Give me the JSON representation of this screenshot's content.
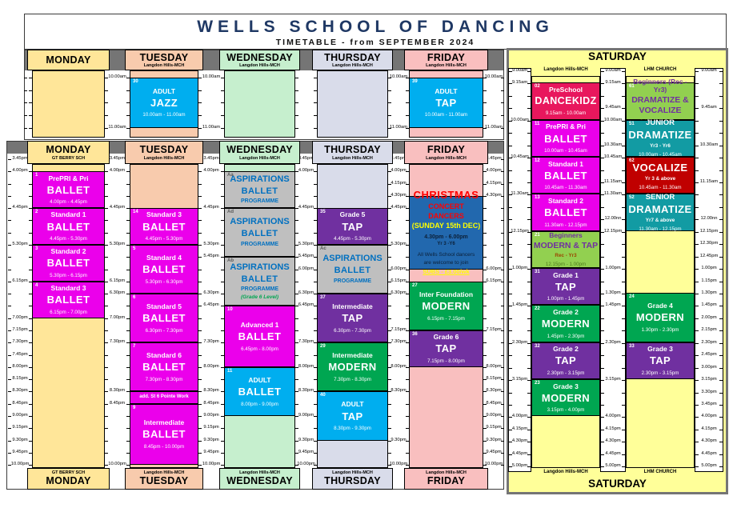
{
  "title": "WELLS SCHOOL OF DANCING",
  "subtitle": "TIMETABLE - from SEPTEMBER 2024",
  "colors": {
    "title_navy": "#1F3864",
    "day_monday": "#FFE699",
    "day_tuesday": "#F8CBAD",
    "day_wednesday": "#C6EFCE",
    "day_thursday": "#D9DCEA",
    "day_friday": "#F9BFBF",
    "day_saturday": "#FFFF99",
    "ballet": "#EB00EB",
    "tap": "#7030A0",
    "modern": "#00A651",
    "adult": "#00AEEF",
    "aspirations_bg": "#BFBFBF",
    "aspirations_text": "#0070C0",
    "aspirations_note_green": "#00A651",
    "lime": "#92D050",
    "lime_text": "#7030A0",
    "lime_time": "#4E7B1D",
    "lime_sub": "#9C4500",
    "teal": "#129BA3",
    "red": "#C00000",
    "dancekidz": "#E8175D",
    "christmas_bg": "#2268AE",
    "grey_band": "#757575"
  },
  "morning": {
    "days": [
      {
        "id": "monday",
        "name": "MONDAY",
        "venue": "",
        "blocks": []
      },
      {
        "id": "tuesday",
        "name": "TUESDAY",
        "venue": "Langdon Hills-MCH",
        "blocks": [
          {
            "num": "30",
            "l1": "ADULT",
            "l2": "JAZZ",
            "time": "10.00am - 11.00am",
            "start": "10.00am",
            "end": "11.00am",
            "color": "adult"
          }
        ]
      },
      {
        "id": "wednesday",
        "name": "WEDNESDAY",
        "venue": "Langdon Hills-MCH",
        "blocks": []
      },
      {
        "id": "thursday",
        "name": "THURSDAY",
        "venue": "Langdon Hills-MCH",
        "blocks": []
      },
      {
        "id": "friday",
        "name": "FRIDAY",
        "venue": "Langdon Hills-MCH",
        "blocks": [
          {
            "num": "39",
            "l1": "ADULT",
            "l2": "TAP",
            "time": "10.00am - 11.00am",
            "start": "10.00am",
            "end": "11.00am",
            "color": "adult"
          }
        ]
      }
    ],
    "rulers": [
      {
        "labels": []
      },
      {
        "labels": [
          "10.00am",
          "11.00am"
        ]
      },
      {
        "labels": [
          "10.00am",
          "11.00am"
        ]
      },
      {
        "labels": []
      },
      {
        "labels": [
          "10.00am",
          "11.00am"
        ]
      },
      {
        "labels": [
          "10.00am",
          "11.00am"
        ]
      }
    ]
  },
  "main": {
    "days": [
      {
        "id": "monday",
        "name": "MONDAY",
        "venue": "GT BERRY SCH",
        "blocks": [
          {
            "num": "1",
            "l1": "PrePRI & Pri",
            "l2": "BALLET",
            "time": "4.00pm - 4.45pm",
            "start": "4.00pm",
            "end": "4.45pm",
            "color": "ballet"
          },
          {
            "num": "2",
            "l1": "Standard 1",
            "l2": "BALLET",
            "time": "4.45pm - 5.30pm",
            "start": "4.45pm",
            "end": "5.30pm",
            "color": "ballet"
          },
          {
            "num": "3",
            "l1": "Standard 2",
            "l2": "BALLET",
            "time": "5.30pm - 6.15pm",
            "start": "5.30pm",
            "end": "6.15pm",
            "color": "ballet"
          },
          {
            "num": "4",
            "l1": "Standard 3",
            "l2": "BALLET",
            "time": "6.15pm - 7.00pm",
            "start": "6.15pm",
            "end": "7.00pm",
            "color": "ballet"
          }
        ]
      },
      {
        "id": "tuesday",
        "name": "TUESDAY",
        "venue": "Langdon Hills-MCH",
        "blocks": [
          {
            "num": "14",
            "l1": "Standard 3",
            "l2": "BALLET",
            "time": "4.45pm - 5.30pm",
            "start": "4.45pm",
            "end": "5.30pm",
            "color": "ballet"
          },
          {
            "num": "5",
            "l1": "Standard 4",
            "l2": "BALLET",
            "time": "5.30pm - 6.30pm",
            "start": "5.30pm",
            "end": "6.30pm",
            "color": "ballet"
          },
          {
            "num": "6",
            "l1": "Standard 5",
            "l2": "BALLET",
            "time": "6.30pm - 7.30pm",
            "start": "6.30pm",
            "end": "7.30pm",
            "color": "ballet"
          },
          {
            "num": "7",
            "l1": "Standard 6",
            "l2": "BALLET",
            "time": "7.30pm - 8.30pm",
            "start": "7.30pm",
            "end": "8.30pm",
            "color": "ballet"
          },
          {
            "type": "strip",
            "text": "add. St 6 Pointe Work",
            "start": "8.30pm",
            "end": "8.45pm",
            "color": "ballet"
          },
          {
            "num": "9",
            "l1": "Intermediate",
            "l2": "BALLET",
            "time": "8.45pm - 10.00pm",
            "start": "8.45pm",
            "end": "10.00pm",
            "color": "ballet"
          }
        ]
      },
      {
        "id": "wednesday",
        "name": "WEDNESDAY",
        "venue": "Langdon Hills-MCH",
        "blocks": [
          {
            "num": "Aa",
            "l1": "ASPIRATIONS",
            "l2": "BALLET",
            "sub": "PROGRAMME",
            "start": "4.00pm",
            "end": "4.45pm",
            "color": "asp"
          },
          {
            "num": "Ad",
            "l1": "ASPIRATIONS",
            "l2": "BALLET",
            "sub": "PROGRAMME",
            "start": "4.45pm",
            "end": "5.45pm",
            "color": "asp"
          },
          {
            "num": "Ab",
            "l1": "ASPIRATIONS",
            "l2": "BALLET",
            "sub": "PROGRAMME",
            "sub2": "(Grade 6 Level)",
            "start": "5.45pm",
            "end": "6.45pm",
            "color": "asp"
          },
          {
            "num": "10",
            "l1": "Advanced 1",
            "l2": "BALLET",
            "time": "6.45pm - 8.00pm",
            "start": "6.45pm",
            "end": "8.00pm",
            "color": "ballet"
          },
          {
            "num": "11",
            "l1": "ADULT",
            "l2": "BALLET",
            "time": "8.00pm - 9.00pm",
            "start": "8.00pm",
            "end": "9.00pm",
            "color": "adult"
          }
        ]
      },
      {
        "id": "thursday",
        "name": "THURSDAY",
        "venue": "Langdon Hills-MCH",
        "blocks": [
          {
            "num": "35",
            "l1": "Grade 5",
            "l2": "TAP",
            "time": "4.45pm - 5.30pm",
            "start": "4.45pm",
            "end": "5.30pm",
            "color": "tap"
          },
          {
            "num": "Ac",
            "l1": "ASPIRATIONS",
            "l2": "BALLET",
            "sub": "PROGRAMME",
            "start": "5.30pm",
            "end": "6.30pm",
            "color": "asp"
          },
          {
            "num": "37",
            "l1": "Intermediate",
            "l2": "TAP",
            "time": "6.30pm - 7.30pm",
            "start": "6.30pm",
            "end": "7.30pm",
            "color": "tap"
          },
          {
            "num": "29",
            "l1": "Intermediate",
            "l2": "MODERN",
            "time": "7.30pm - 8.30pm",
            "start": "7.30pm",
            "end": "8.30pm",
            "color": "modern"
          },
          {
            "num": "40",
            "l1": "ADULT",
            "l2": "TAP",
            "time": "8.30pm - 9.30pm",
            "start": "8.30pm",
            "end": "9.30pm",
            "color": "adult"
          }
        ]
      },
      {
        "id": "friday",
        "name": "FRIDAY",
        "venue": "Langdon Hills-MCH",
        "blocks": [
          {
            "type": "christmas",
            "start": "4.30pm",
            "end": "6.00pm",
            "color": "christmas",
            "lines": [
              {
                "text": "CHRISTMAS",
                "style": "xm-l1"
              },
              {
                "text": "CONCERT DANCERS",
                "style": "xm-l2"
              },
              {
                "text": "(SUNDAY 15th DEC)",
                "style": "xm-l3"
              },
              {
                "text": "4.30pm - 6.00pm",
                "style": "xm-time"
              },
              {
                "text": "Yr 3 -Y6",
                "style": "xm-sub"
              },
              {
                "text": "All Wells School dancers",
                "style": "xm-note first"
              },
              {
                "text": "are welcome to join",
                "style": "xm-note"
              },
              {
                "text": "SUBS - £3.00/wk",
                "style": "xm-subs"
              }
            ]
          },
          {
            "num": "27",
            "l1": "Inter Foundation",
            "l2": "MODERN",
            "time": "6.15pm - 7.15pm",
            "start": "6.15pm",
            "end": "7.15pm",
            "color": "modern"
          },
          {
            "num": "36",
            "l1": "Grade 6",
            "l2": "TAP",
            "time": "7.15pm - 8.00pm",
            "start": "7.15pm",
            "end": "8.00pm",
            "color": "tap"
          }
        ]
      }
    ],
    "rulers": [
      {
        "labels": [
          "3.45pm",
          "4.00pm",
          "4.45pm",
          "5.30pm",
          "6.15pm",
          "7.00pm",
          "7.15pm",
          "7.30pm",
          "7.45pm",
          "8.00pm",
          "8.15pm",
          "8.30pm",
          "8.45pm",
          "9.00pm",
          "9.15pm",
          "9.30pm",
          "9.45pm",
          "10.00pm"
        ]
      },
      {
        "labels": [
          "3.45pm",
          "4.00pm",
          "4.45pm",
          "5.30pm",
          "6.15pm",
          "6.30pm",
          "7.00pm",
          "7.30pm",
          "8.30pm",
          "8.45pm",
          "10.00pm"
        ]
      },
      {
        "labels": [
          "3.45pm",
          "4.00pm",
          "4.45pm",
          "5.30pm",
          "5.45pm",
          "6.30pm",
          "6.45pm",
          "7.30pm",
          "8.00pm",
          "8.30pm",
          "8.45pm",
          "9.00pm",
          "9.15pm",
          "9.30pm",
          "9.45pm",
          "10.00pm"
        ]
      },
      {
        "labels": [
          "3.45pm",
          "4.00pm",
          "4.45pm",
          "5.30pm",
          "5.45pm",
          "6.00pm",
          "6.30pm",
          "6.45pm",
          "7.30pm",
          "8.00pm",
          "8.30pm",
          "9.00pm",
          "9.30pm",
          "9.45pm",
          "10.00pm"
        ]
      },
      {
        "labels": [
          "3.45pm",
          "4.00pm",
          "4.15pm",
          "4.30pm",
          "4.45pm",
          "5.30pm",
          "6.00pm",
          "6.15pm",
          "6.30pm",
          "7.15pm",
          "7.30pm",
          "8.00pm",
          "8.30pm",
          "9.30pm",
          "10.00pm"
        ]
      },
      {
        "labels": [
          "3.45pm",
          "4.00pm",
          "4.15pm",
          "4.30pm",
          "6.00pm",
          "6.15pm",
          "7.15pm",
          "8.00pm",
          "8.15pm",
          "8.30pm",
          "8.45pm",
          "9.00pm",
          "9.15pm",
          "9.30pm",
          "9.45pm",
          "10.00pm"
        ]
      }
    ]
  },
  "saturday": {
    "title": "SATURDAY",
    "columns": [
      {
        "venue": "Langdon Hills-MCH",
        "blocks": [
          {
            "num": "02",
            "l1": "PreSchool",
            "l2": "DANCEKIDZ",
            "time": "9.15am - 10.00am",
            "start": "9.15am",
            "end": "10.00am",
            "color": "dancekidz"
          },
          {
            "num": "11",
            "l1": "PrePRI & Pri",
            "l2": "BALLET",
            "time": "10.00am - 10.45am",
            "start": "10.00am",
            "end": "10.45am",
            "color": "ballet"
          },
          {
            "num": "12",
            "l1": "Standard 1",
            "l2": "BALLET",
            "time": "10.45am - 11.30am",
            "start": "10.45am",
            "end": "11.30am",
            "color": "ballet"
          },
          {
            "num": "13",
            "l1": "Standard 2",
            "l2": "BALLET",
            "time": "11.30am - 12.15pm",
            "start": "11.30am",
            "end": "12.15pm",
            "color": "ballet"
          },
          {
            "num": "21",
            "l1": "Beginners",
            "l2": "MODERN & TAP",
            "sub": "Rec - Yr3",
            "time": "12.15pm - 1.00pm",
            "start": "12.15pm",
            "end": "1.00pm",
            "color": "lime"
          },
          {
            "num": "31",
            "l1": "Grade 1",
            "l2": "TAP",
            "time": "1.00pm - 1.45pm",
            "start": "1.00pm",
            "end": "1.45pm",
            "color": "tap"
          },
          {
            "num": "22",
            "l1": "Grade 2",
            "l2": "MODERN",
            "time": "1.45pm - 2.30pm",
            "start": "1.45pm",
            "end": "2.30pm",
            "color": "modern"
          },
          {
            "num": "32",
            "l1": "Grade 2",
            "l2": "TAP",
            "time": "2.30pm - 3.15pm",
            "start": "2.30pm",
            "end": "3.15pm",
            "color": "tap"
          },
          {
            "num": "23",
            "l1": "Grade 3",
            "l2": "MODERN",
            "time": "3.15pm - 4.00pm",
            "start": "3.15pm",
            "end": "4.00pm",
            "color": "modern"
          }
        ]
      },
      {
        "venue": "LHM CHURCH",
        "blocks": [
          {
            "num": "61",
            "l1": "Beginners (Rec - Yr3)",
            "l2": "DRAMATIZE & VOCALIZE",
            "time": "9.15am - 10.00am",
            "start": "9.15am",
            "end": "10.00am",
            "color": "lime"
          },
          {
            "num": "51",
            "l1": "JUNIOR",
            "l2": "DRAMATIZE",
            "sub": "Yr3 - Yr6",
            "time": "10.00am - 10.45am",
            "start": "10.00am",
            "end": "10.45am",
            "color": "teal"
          },
          {
            "num": "62",
            "l2": "VOCALIZE",
            "sub": "Yr 3 & above",
            "time": "10.45am - 11.30am",
            "start": "10.45am",
            "end": "11.30am",
            "color": "red"
          },
          {
            "num": "52",
            "l1": "SENIOR",
            "l2": "DRAMATIZE",
            "sub": "Yr7 & above",
            "time": "11.30am - 12.15pm",
            "start": "11.30am",
            "end": "12.15pm",
            "color": "teal"
          },
          {
            "num": "24",
            "l1": "Grade 4",
            "l2": "MODERN",
            "time": "1.30pm - 2.30pm",
            "start": "1.30pm",
            "end": "2.30pm",
            "color": "modern"
          },
          {
            "num": "33",
            "l1": "Grade 3",
            "l2": "TAP",
            "time": "2.30pm - 3.15pm",
            "start": "2.30pm",
            "end": "3.15pm",
            "color": "tap"
          }
        ]
      }
    ],
    "rulers": [
      {
        "labels": [
          "9.00am",
          "9.15am",
          "10.00am",
          "10.45am",
          "11.30am",
          "12.15pm",
          "1.00pm",
          "1.45pm",
          "2.30pm",
          "3.15pm",
          "4.00pm",
          "4.15pm",
          "4.30pm",
          "4.45pm",
          "5.00pm"
        ]
      },
      {
        "labels": [
          "9.00am",
          "9.15am",
          "9.45am",
          "10.00am",
          "10.30am",
          "10.45am",
          "11.15am",
          "11.30am",
          "12.00nn",
          "12.15pm",
          "1.00pm",
          "1.30pm",
          "1.45pm",
          "2.30pm",
          "3.15pm",
          "4.00pm",
          "4.15pm",
          "4.30pm",
          "4.45pm",
          "5.00pm"
        ]
      },
      {
        "labels": [
          "9.00am",
          "9.45am",
          "10.30am",
          "11.15am",
          "12.00nn",
          "12.15pm",
          "12.30pm",
          "12.45pm",
          "1.00pm",
          "1.15pm",
          "1.30pm",
          "1.45pm",
          "2.00pm",
          "2.15pm",
          "2.30pm",
          "2.45pm",
          "3.00pm",
          "3.15pm",
          "3.30pm",
          "3.45pm",
          "4.00pm",
          "4.15pm",
          "4.30pm",
          "4.45pm",
          "5.00pm"
        ]
      }
    ]
  }
}
